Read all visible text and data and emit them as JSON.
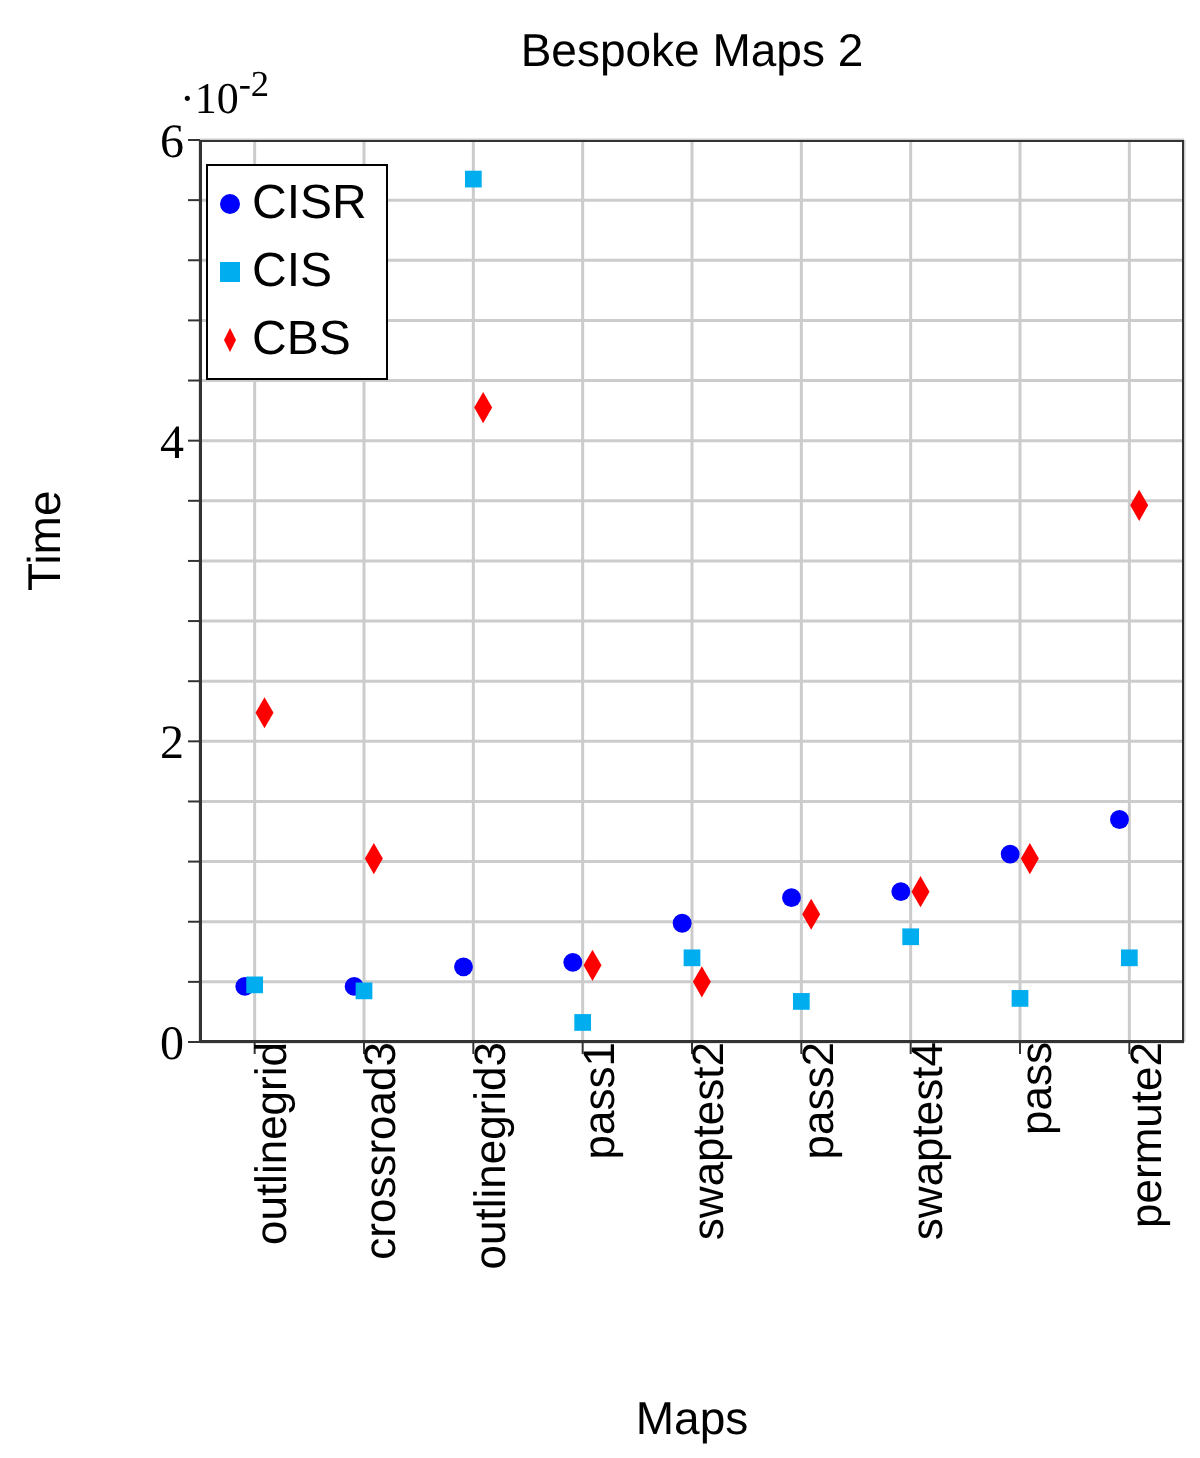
{
  "chart_data": {
    "type": "scatter",
    "title": "Bespoke Maps 2",
    "xlabel": "Maps",
    "ylabel": "Time",
    "annotations": [
      "·10$^{-2}$"
    ],
    "categories": [
      "outlinegrid",
      "crossroad3",
      "outlinegrid3",
      "pass1",
      "swaptest2",
      "pass2",
      "swaptest4",
      "pass",
      "permute2"
    ],
    "series": [
      {
        "name": "CISR",
        "color": "#0000ff",
        "marker": "circle",
        "values": [
          0.37,
          0.37,
          0.5,
          0.53,
          0.79,
          0.96,
          1.0,
          1.25,
          1.48
        ]
      },
      {
        "name": "CIS",
        "color": "#00aeef",
        "marker": "square",
        "values": [
          0.38,
          0.34,
          5.74,
          0.13,
          0.56,
          0.27,
          0.7,
          0.29,
          0.56
        ]
      },
      {
        "name": "CBS",
        "color": "#ff0000",
        "marker": "diamond",
        "values": [
          2.19,
          1.22,
          4.22,
          0.51,
          0.4,
          0.85,
          1.0,
          1.22,
          3.57
        ]
      }
    ],
    "ylim": [
      0,
      6
    ],
    "yticks": [
      0,
      {
        "value": 0.4,
        "label": null
      },
      {
        "value": 0.8,
        "label": null
      },
      {
        "value": 1.2,
        "label": null
      },
      {
        "value": 1.6,
        "label": null
      },
      2,
      {
        "value": 2.4,
        "label": null
      },
      {
        "value": 2.8,
        "label": null
      },
      {
        "value": 3.2,
        "label": null
      },
      {
        "value": 3.6,
        "label": null
      },
      4,
      {
        "value": 4.4,
        "label": null
      },
      {
        "value": 4.8,
        "label": null
      },
      {
        "value": 5.2,
        "label": null
      },
      {
        "value": 5.6,
        "label": null
      },
      6
    ],
    "grid": true,
    "legend": "top left"
  }
}
